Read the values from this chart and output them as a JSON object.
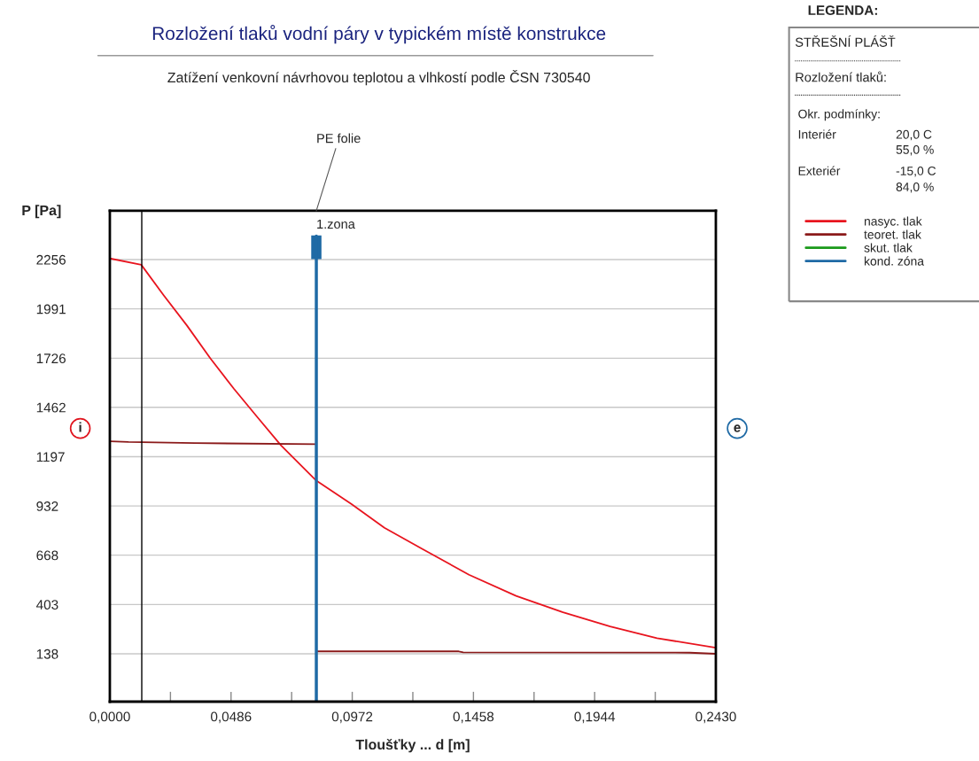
{
  "chart_data": {
    "type": "line",
    "title": "Rozložení tlaků vodní páry v typickém místě konstrukce",
    "subtitle": "Zatížení venkovní návrhovou teplotou a vlhkostí podle ČSN 730540",
    "xlabel": "Tloušťky ... d [m]",
    "ylabel": "P [Pa]",
    "legend_title": "LEGENDA:",
    "series": [
      {
        "name": "nasyc. tlak",
        "color": "#e8141e",
        "x": [
          0,
          0.0126,
          0.0215,
          0.0309,
          0.0403,
          0.0498,
          0.0592,
          0.0686,
          0.0828,
          0.0969,
          0.1101,
          0.1252,
          0.144,
          0.1629,
          0.1817,
          0.2006,
          0.2194,
          0.243
        ],
        "values": [
          2262,
          2228,
          2066,
          1902,
          1725,
          1561,
          1409,
          1258,
          1068,
          942,
          815,
          702,
          563,
          449,
          361,
          285,
          222,
          171
        ]
      },
      {
        "name": "teoret. tlak",
        "color": "#8b1a1a",
        "x": [
          0,
          0.0075,
          0.034,
          0.0828
        ],
        "values": [
          1280,
          1276,
          1270,
          1264
        ]
      },
      {
        "color": "#8b1a1a",
        "x": [
          0.0828,
          0.1399,
          0.1417,
          0.2326,
          0.243
        ],
        "values": [
          151,
          151,
          146,
          144,
          138
        ]
      },
      {
        "name": "skut. tlak",
        "color": "#1a9a1a"
      },
      {
        "name": "kond. zóna",
        "color": "#1f6aa5",
        "x": [
          0.0828,
          0.0828
        ],
        "values": [
          -119,
          2382
        ]
      }
    ],
    "ref_lines": [
      {
        "axis": "x",
        "value": 0.0128,
        "color": "#000000"
      }
    ],
    "xlim": [
      0,
      0.243
    ],
    "ylim": [
      -119,
      2518
    ],
    "xticks": [
      {
        "value": 0,
        "label": "0,0000"
      },
      {
        "value": 0.0243,
        "label": null
      },
      {
        "value": 0.0486,
        "label": "0,0486"
      },
      {
        "value": 0.0729,
        "label": null
      },
      {
        "value": 0.0972,
        "label": "0,0972"
      },
      {
        "value": 0.1215,
        "label": null
      },
      {
        "value": 0.1458,
        "label": "0,1458"
      },
      {
        "value": 0.1701,
        "label": null
      },
      {
        "value": 0.1944,
        "label": "0,1944"
      },
      {
        "value": 0.2187,
        "label": null
      },
      {
        "value": 0.243,
        "label": "0,2430"
      }
    ],
    "yticks": [
      138,
      403,
      668,
      932,
      1197,
      1462,
      1726,
      1991,
      2256
    ],
    "grid": "y",
    "legend": "right",
    "annotations": [
      {
        "text": "1.zona",
        "x": 0.0828,
        "y": 2382
      },
      {
        "text": "PE folie",
        "x": 0.0828
      },
      "i",
      "e",
      "STŘEŠNÍ PLÁŠŤ",
      "Rozložení tlaků:",
      "Okr. podmínky:",
      "Interiér",
      "20,0 C",
      "55,0 %",
      "Exteriér",
      "-15,0 C",
      "84,0 %"
    ]
  }
}
